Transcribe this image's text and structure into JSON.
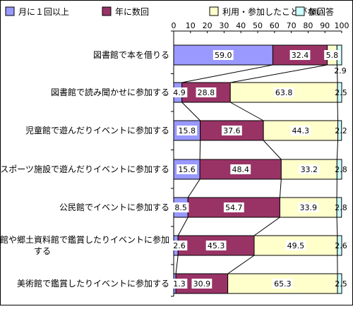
{
  "chart_data": {
    "type": "bar",
    "stacked": true,
    "orientation": "horizontal",
    "legend_position": "top",
    "xlim": [
      0,
      100
    ],
    "x_ticks": [
      0,
      10,
      20,
      30,
      40,
      50,
      60,
      70,
      80,
      90,
      100
    ],
    "grid": false,
    "categories": [
      "図書館で本を借りる",
      "図書館で読み聞かせに参加する",
      "児童館で遊んだりイベントに参加する",
      "スポーツ施設で遊んだりイベントに参加する",
      "公民館でイベントに参加する",
      "博物館や郷土資料館で鑑賞したりイベントに参加する",
      "美術館で鑑賞したりイベントに参加する"
    ],
    "series": [
      {
        "name": "月に１回以上",
        "color": "#9999ff",
        "values": [
          59.0,
          4.9,
          15.8,
          15.6,
          8.5,
          2.6,
          1.3
        ]
      },
      {
        "name": "年に数回",
        "color": "#993366",
        "values": [
          32.4,
          28.8,
          37.6,
          48.4,
          54.7,
          45.3,
          30.9
        ]
      },
      {
        "name": "利用・参加したことがない",
        "color": "#ffffcc",
        "values": [
          5.8,
          63.8,
          44.3,
          33.2,
          33.9,
          49.5,
          65.3
        ]
      },
      {
        "name": "無回答",
        "color": "#ccffff",
        "values": [
          2.9,
          2.5,
          2.2,
          2.8,
          2.8,
          2.6,
          2.5
        ]
      }
    ],
    "value_labels": [
      [
        "59.0",
        "32.4",
        "5.8",
        "2.9"
      ],
      [
        "4.9",
        "28.8",
        "63.8",
        "2.5"
      ],
      [
        "15.8",
        "37.6",
        "44.3",
        "2.2"
      ],
      [
        "15.6",
        "48.4",
        "33.2",
        "2.8"
      ],
      [
        "8.5",
        "54.7",
        "33.9",
        "2.8"
      ],
      [
        "2.6",
        "45.3",
        "49.5",
        "2.6"
      ],
      [
        "1.3",
        "30.9",
        "65.3",
        "2.5"
      ]
    ],
    "category_label_lines": [
      [
        "図書館で本を借りる"
      ],
      [
        "図書館で読み聞かせに参加する"
      ],
      [
        "児童館で遊んだりイベントに参加する"
      ],
      [
        "スポーツ施設で遊んだりイベントに参加する"
      ],
      [
        "公民館でイベントに参加する"
      ],
      [
        "博物館や郷土資料館で鑑賞したりイベントに参加",
        "する"
      ],
      [
        "美術館で鑑賞したりイベントに参加する"
      ]
    ]
  }
}
